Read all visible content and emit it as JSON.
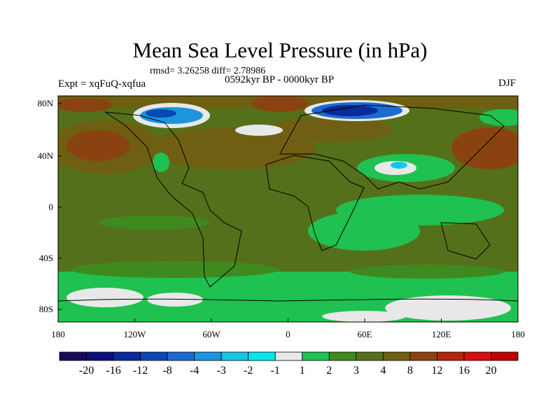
{
  "header": {
    "title": "Mean Sea Level Pressure (in hPa)",
    "stats": "rmsd= 3.26258 diff= 2.78986",
    "period": "0592kyr BP - 0000kyr BP",
    "experiment": "Expt = xqFuQ-xqfua",
    "season": "DJF"
  },
  "axes": {
    "lat_labels": [
      "80N",
      "40N",
      "0",
      "40S",
      "80S"
    ],
    "lon_labels": [
      "180",
      "120W",
      "60W",
      "0",
      "60E",
      "120E",
      "180"
    ]
  },
  "colorbar": {
    "labels": [
      "-20",
      "-16",
      "-12",
      "-8",
      "-4",
      "-3",
      "-2",
      "-1",
      "1",
      "2",
      "3",
      "4",
      "8",
      "12",
      "16",
      "20"
    ],
    "colors": [
      "#1a0a5c",
      "#0c127a",
      "#0a2a9a",
      "#0b47b5",
      "#1d6bd0",
      "#1c95dc",
      "#15c6e6",
      "#05e6ee",
      "#e8e8e8",
      "#1fc150",
      "#3e8a1f",
      "#55711a",
      "#6e5f12",
      "#8a4310",
      "#b5250a",
      "#d90e0e",
      "#c00000"
    ]
  },
  "map_colors": {
    "background": "#55701a",
    "land_line": "#000000"
  }
}
